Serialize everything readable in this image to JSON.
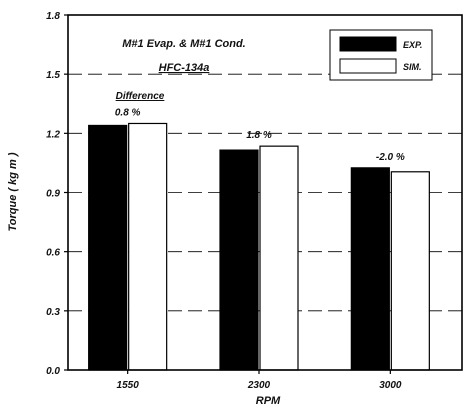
{
  "chart_data": {
    "type": "bar",
    "title": "M#1 Evap. & M#1 Cond.",
    "subtitle": "HFC-134a",
    "xlabel": "RPM",
    "ylabel": "Torque ( kg m )",
    "categories": [
      "1550",
      "2300",
      "3000"
    ],
    "series": [
      {
        "name": "EXP.",
        "values": [
          1.24,
          1.115,
          1.025
        ],
        "color": "#000000"
      },
      {
        "name": "SIM.",
        "values": [
          1.25,
          1.135,
          1.005
        ],
        "color": "#ffffff"
      }
    ],
    "ylim": [
      0.0,
      1.8
    ],
    "yticks": [
      "0.0",
      "0.3",
      "0.6",
      "0.9",
      "1.2",
      "1.5",
      "1.8"
    ],
    "annotation_header": "Difference",
    "differences": [
      "0.8 %",
      "1.8 %",
      "-2.0 %"
    ],
    "grid": "dashed horizontal",
    "legend_position": "top-right"
  }
}
